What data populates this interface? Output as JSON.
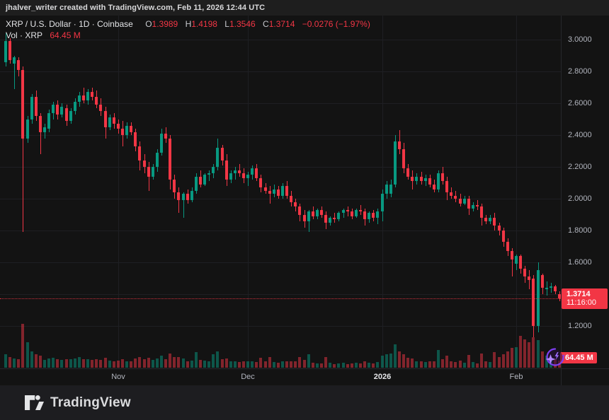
{
  "banner": {
    "text": "jhalver_writer created with TradingView.com, Feb 11, 2026 12:44 UTC"
  },
  "legend": {
    "symbol_line": "XRP / U.S. Dollar · 1D · Coinbase",
    "ohlc": [
      {
        "k": "O",
        "v": "1.3989"
      },
      {
        "k": "H",
        "v": "1.4198"
      },
      {
        "k": "L",
        "v": "1.3546"
      },
      {
        "k": "C",
        "v": "1.3714"
      }
    ],
    "change": "−0.0276 (−1.97%)",
    "vol_label": "Vol · XRP",
    "vol_value": "64.45 M"
  },
  "price_badge": {
    "price": "1.3714",
    "time": "11:16:00"
  },
  "vol_badge": {
    "text": "64.45 M"
  },
  "footer": {
    "brand": "TradingView"
  },
  "icons": {
    "sparkle": "sparkle-swirl-icon",
    "logo": "tradingview-logo"
  },
  "colors": {
    "up": "#089981",
    "down": "#f23645",
    "badge": "#f23645",
    "grid": "#1e1f23",
    "axis_text": "#b2b5be",
    "bg": "#131313"
  },
  "chart_data": {
    "type": "candlestick",
    "title": "XRP / U.S. Dollar",
    "exchange": "Coinbase",
    "interval": "1D",
    "last": {
      "open": 1.3989,
      "high": 1.4198,
      "low": 1.3546,
      "close": 1.3714,
      "change": -0.0276,
      "change_pct": -1.97,
      "time": "11:16:00"
    },
    "ylim": [
      1.05,
      3.05
    ],
    "y_ticks": [
      {
        "label": "3.0000",
        "value": 3.0
      },
      {
        "label": "2.8000",
        "value": 2.8
      },
      {
        "label": "2.6000",
        "value": 2.6
      },
      {
        "label": "2.4000",
        "value": 2.4
      },
      {
        "label": "2.2000",
        "value": 2.2
      },
      {
        "label": "2.0000",
        "value": 2.0
      },
      {
        "label": "1.8000",
        "value": 1.8
      },
      {
        "label": "1.6000",
        "value": 1.6
      },
      {
        "label": "1.4000",
        "value": 1.4
      },
      {
        "label": "1.2000",
        "value": 1.2
      }
    ],
    "x_ticks": [
      {
        "label": "Nov",
        "index": 26,
        "emph": false
      },
      {
        "label": "Dec",
        "index": 56,
        "emph": false
      },
      {
        "label": "2026",
        "index": 87,
        "emph": true
      },
      {
        "label": "Feb",
        "index": 118,
        "emph": false
      }
    ],
    "price_line": 1.3714,
    "volume_unit": "M",
    "volume_current": 64.45,
    "grid": true,
    "candles_format": [
      "open",
      "high",
      "low",
      "close",
      "volume_M"
    ],
    "candles": [
      [
        2.86,
        3.04,
        2.83,
        2.99,
        120
      ],
      [
        2.99,
        3.01,
        2.85,
        2.87,
        95
      ],
      [
        2.85,
        2.9,
        2.69,
        2.89,
        85
      ],
      [
        2.87,
        2.89,
        2.77,
        2.81,
        80
      ],
      [
        2.81,
        2.83,
        1.79,
        2.38,
        400
      ],
      [
        2.38,
        2.52,
        2.35,
        2.5,
        235
      ],
      [
        2.5,
        2.66,
        2.47,
        2.64,
        150
      ],
      [
        2.64,
        2.68,
        2.49,
        2.52,
        120
      ],
      [
        2.52,
        2.54,
        2.28,
        2.42,
        110
      ],
      [
        2.42,
        2.47,
        2.38,
        2.45,
        70
      ],
      [
        2.44,
        2.56,
        2.42,
        2.54,
        85
      ],
      [
        2.54,
        2.61,
        2.5,
        2.59,
        90
      ],
      [
        2.59,
        2.62,
        2.5,
        2.53,
        75
      ],
      [
        2.53,
        2.6,
        2.51,
        2.58,
        70
      ],
      [
        2.57,
        2.59,
        2.46,
        2.49,
        80
      ],
      [
        2.49,
        2.57,
        2.47,
        2.55,
        75
      ],
      [
        2.55,
        2.63,
        2.53,
        2.61,
        85
      ],
      [
        2.61,
        2.67,
        2.58,
        2.65,
        95
      ],
      [
        2.65,
        2.7,
        2.6,
        2.62,
        80
      ],
      [
        2.62,
        2.69,
        2.59,
        2.67,
        75
      ],
      [
        2.67,
        2.7,
        2.62,
        2.64,
        70
      ],
      [
        2.64,
        2.68,
        2.57,
        2.59,
        75
      ],
      [
        2.59,
        2.63,
        2.52,
        2.55,
        70
      ],
      [
        2.55,
        2.58,
        2.38,
        2.45,
        90
      ],
      [
        2.45,
        2.53,
        2.43,
        2.51,
        65
      ],
      [
        2.51,
        2.54,
        2.44,
        2.47,
        60
      ],
      [
        2.47,
        2.5,
        2.41,
        2.44,
        65
      ],
      [
        2.44,
        2.49,
        2.33,
        2.4,
        75
      ],
      [
        2.4,
        2.48,
        2.38,
        2.46,
        60
      ],
      [
        2.46,
        2.48,
        2.4,
        2.42,
        55
      ],
      [
        2.42,
        2.44,
        2.3,
        2.33,
        85
      ],
      [
        2.33,
        2.36,
        2.18,
        2.24,
        95
      ],
      [
        2.24,
        2.28,
        2.16,
        2.2,
        80
      ],
      [
        2.2,
        2.23,
        2.05,
        2.14,
        90
      ],
      [
        2.14,
        2.22,
        2.12,
        2.2,
        70
      ],
      [
        2.2,
        2.31,
        2.17,
        2.29,
        85
      ],
      [
        2.29,
        2.44,
        2.27,
        2.41,
        110
      ],
      [
        2.41,
        2.45,
        2.35,
        2.38,
        75
      ],
      [
        2.38,
        2.4,
        2.06,
        2.12,
        130
      ],
      [
        2.12,
        2.15,
        2.0,
        2.04,
        100
      ],
      [
        2.04,
        2.07,
        1.91,
        1.99,
        95
      ],
      [
        1.99,
        2.04,
        1.88,
        2.03,
        85
      ],
      [
        2.03,
        2.06,
        1.97,
        1.99,
        60
      ],
      [
        1.99,
        2.07,
        1.98,
        2.05,
        65
      ],
      [
        2.05,
        2.16,
        2.03,
        2.14,
        140
      ],
      [
        2.14,
        2.18,
        2.07,
        2.09,
        70
      ],
      [
        2.09,
        2.16,
        2.08,
        2.15,
        65
      ],
      [
        2.15,
        2.18,
        2.11,
        2.16,
        60
      ],
      [
        2.16,
        2.22,
        2.13,
        2.2,
        120
      ],
      [
        2.2,
        2.38,
        2.18,
        2.32,
        150
      ],
      [
        2.32,
        2.34,
        2.21,
        2.24,
        80
      ],
      [
        2.24,
        2.28,
        2.08,
        2.12,
        85
      ],
      [
        2.12,
        2.18,
        2.1,
        2.16,
        60
      ],
      [
        2.16,
        2.2,
        2.12,
        2.18,
        55
      ],
      [
        2.18,
        2.22,
        2.14,
        2.16,
        50
      ],
      [
        2.16,
        2.19,
        2.1,
        2.13,
        55
      ],
      [
        2.13,
        2.17,
        2.08,
        2.15,
        60
      ],
      [
        2.15,
        2.21,
        2.12,
        2.19,
        55
      ],
      [
        2.19,
        2.22,
        2.11,
        2.13,
        50
      ],
      [
        2.13,
        2.15,
        2.04,
        2.07,
        90
      ],
      [
        2.07,
        2.1,
        2.03,
        2.05,
        55
      ],
      [
        2.05,
        2.08,
        1.97,
        2.03,
        100
      ],
      [
        2.03,
        2.09,
        2.01,
        2.06,
        50
      ],
      [
        2.06,
        2.08,
        2.0,
        2.02,
        45
      ],
      [
        2.02,
        2.1,
        2.0,
        2.08,
        60
      ],
      [
        2.08,
        2.11,
        2.0,
        2.02,
        55
      ],
      [
        2.02,
        2.05,
        1.95,
        1.98,
        60
      ],
      [
        1.98,
        2.0,
        1.92,
        1.95,
        55
      ],
      [
        1.95,
        1.97,
        1.86,
        1.9,
        95
      ],
      [
        1.9,
        1.93,
        1.82,
        1.86,
        70
      ],
      [
        1.86,
        1.93,
        1.79,
        1.92,
        120
      ],
      [
        1.92,
        1.95,
        1.87,
        1.89,
        45
      ],
      [
        1.89,
        1.94,
        1.87,
        1.93,
        40
      ],
      [
        1.93,
        1.95,
        1.88,
        1.9,
        40
      ],
      [
        1.9,
        1.92,
        1.81,
        1.85,
        95
      ],
      [
        1.85,
        1.89,
        1.83,
        1.88,
        45
      ],
      [
        1.88,
        1.91,
        1.85,
        1.87,
        35
      ],
      [
        1.87,
        1.92,
        1.86,
        1.91,
        40
      ],
      [
        1.91,
        1.94,
        1.88,
        1.93,
        45
      ],
      [
        1.93,
        1.95,
        1.89,
        1.92,
        35
      ],
      [
        1.92,
        1.94,
        1.87,
        1.89,
        40
      ],
      [
        1.89,
        1.94,
        1.88,
        1.93,
        45
      ],
      [
        1.93,
        1.96,
        1.9,
        1.92,
        40
      ],
      [
        1.92,
        1.94,
        1.83,
        1.87,
        55
      ],
      [
        1.87,
        1.92,
        1.85,
        1.91,
        45
      ],
      [
        1.91,
        1.93,
        1.86,
        1.88,
        40
      ],
      [
        1.88,
        1.94,
        1.84,
        1.92,
        50
      ],
      [
        1.92,
        2.06,
        1.86,
        2.03,
        110
      ],
      [
        2.03,
        2.11,
        2.0,
        2.09,
        120
      ],
      [
        2.03,
        2.12,
        2.01,
        2.09,
        130
      ],
      [
        2.09,
        2.4,
        2.07,
        2.36,
        210
      ],
      [
        2.36,
        2.43,
        2.28,
        2.31,
        150
      ],
      [
        2.31,
        2.35,
        2.16,
        2.19,
        120
      ],
      [
        2.19,
        2.22,
        2.12,
        2.14,
        90
      ],
      [
        2.14,
        2.18,
        2.06,
        2.11,
        85
      ],
      [
        2.11,
        2.16,
        2.09,
        2.14,
        60
      ],
      [
        2.14,
        2.17,
        2.09,
        2.11,
        55
      ],
      [
        2.11,
        2.15,
        2.08,
        2.13,
        50
      ],
      [
        2.13,
        2.15,
        2.07,
        2.09,
        55
      ],
      [
        2.09,
        2.12,
        2.04,
        2.06,
        60
      ],
      [
        2.06,
        2.18,
        2.04,
        2.16,
        160
      ],
      [
        2.16,
        2.2,
        2.09,
        2.11,
        75
      ],
      [
        2.11,
        2.14,
        1.99,
        2.04,
        110
      ],
      [
        2.04,
        2.07,
        2.0,
        2.02,
        55
      ],
      [
        2.02,
        2.05,
        1.98,
        2.0,
        50
      ],
      [
        2.0,
        2.03,
        1.95,
        1.97,
        65
      ],
      [
        1.97,
        2.02,
        1.96,
        2.0,
        45
      ],
      [
        2.0,
        2.02,
        1.9,
        1.94,
        115
      ],
      [
        1.94,
        1.98,
        1.92,
        1.96,
        50
      ],
      [
        1.96,
        1.99,
        1.93,
        1.95,
        40
      ],
      [
        1.95,
        1.97,
        1.83,
        1.88,
        130
      ],
      [
        1.88,
        1.9,
        1.84,
        1.86,
        60
      ],
      [
        1.86,
        1.9,
        1.84,
        1.88,
        50
      ],
      [
        1.88,
        1.91,
        1.8,
        1.83,
        140
      ],
      [
        1.83,
        1.85,
        1.77,
        1.8,
        100
      ],
      [
        1.8,
        1.82,
        1.7,
        1.73,
        120
      ],
      [
        1.73,
        1.75,
        1.64,
        1.67,
        150
      ],
      [
        1.67,
        1.69,
        1.51,
        1.62,
        180
      ],
      [
        1.59,
        1.65,
        1.55,
        1.64,
        190
      ],
      [
        1.64,
        1.65,
        1.53,
        1.56,
        290
      ],
      [
        1.56,
        1.58,
        1.47,
        1.51,
        260
      ],
      [
        1.51,
        1.55,
        1.43,
        1.49,
        230
      ],
      [
        1.5,
        1.52,
        1.13,
        1.2,
        280
      ],
      [
        1.2,
        1.6,
        1.16,
        1.55,
        250
      ],
      [
        1.52,
        1.53,
        1.4,
        1.44,
        150
      ],
      [
        1.43,
        1.48,
        1.39,
        1.44,
        110
      ],
      [
        1.44,
        1.47,
        1.41,
        1.45,
        90
      ],
      [
        1.45,
        1.46,
        1.4,
        1.42,
        80
      ],
      [
        1.3989,
        1.4198,
        1.3546,
        1.3714,
        64.45
      ]
    ]
  }
}
